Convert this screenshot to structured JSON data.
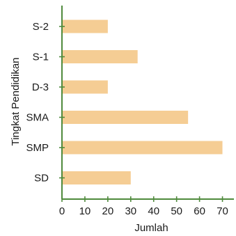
{
  "colors": {
    "bar": "#f5cd94",
    "axis": "#4f8a3c",
    "text": "#1a1a1a"
  },
  "chart_data": {
    "type": "bar",
    "orientation": "horizontal",
    "title": "",
    "xlabel": "Jumlah",
    "ylabel": "Tingkat Pendidikan",
    "categories": [
      "S-2",
      "S-1",
      "D-3",
      "SMA",
      "SMP",
      "SD"
    ],
    "values": [
      20,
      33,
      20,
      55,
      70,
      30
    ],
    "xlim": [
      0,
      75
    ],
    "xticks": [
      0,
      10,
      20,
      30,
      40,
      50,
      60,
      70
    ],
    "grid": false,
    "legend": "none"
  }
}
